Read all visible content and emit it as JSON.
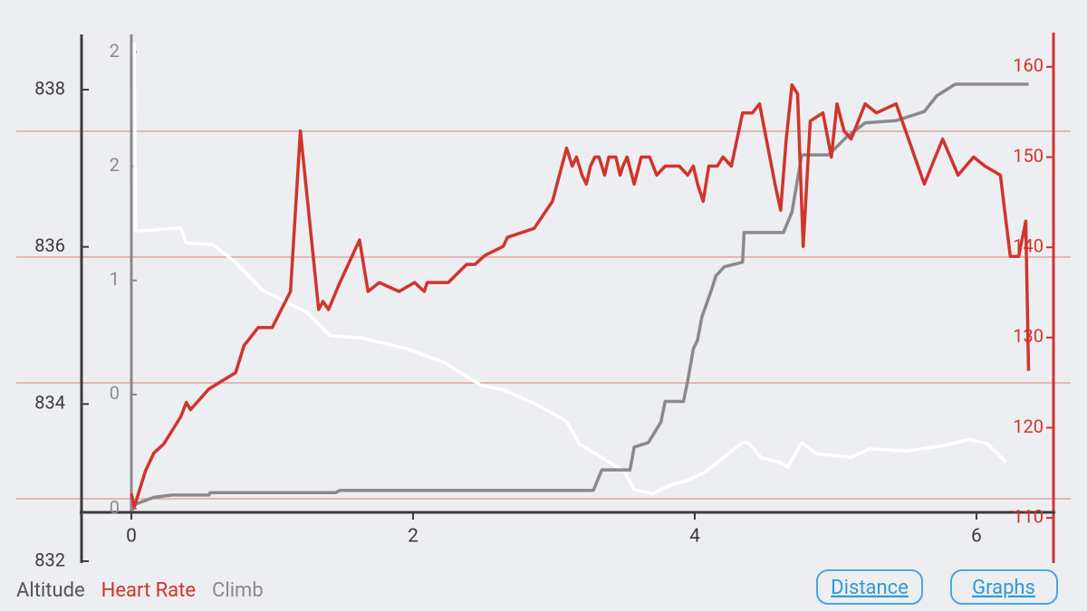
{
  "chart_data": {
    "type": "line",
    "xlim": [
      -0.354,
      6.547
    ],
    "xticks": [
      0,
      2,
      4,
      6
    ],
    "ylim": [
      832,
      838.68
    ],
    "yticks": [
      832,
      834,
      836,
      838
    ],
    "y2lim": [
      105.2,
      163.4
    ],
    "y2ticks": [
      110,
      120,
      130,
      140,
      150,
      160
    ],
    "y3lim": [
      -0.23,
      2.07
    ],
    "y3ticks": [
      0,
      {
        "value": 0.5,
        "label": "0"
      },
      1,
      {
        "value": 1.5,
        "label": "2"
      },
      2
    ],
    "series": [
      {
        "name": "Altitude",
        "color": "#ffffff",
        "axis": "y",
        "x": [
          0.02,
          0.03,
          0.35,
          0.39,
          0.58,
          0.74,
          0.93,
          1.25,
          1.41,
          1.64,
          1.96,
          2.22,
          2.48,
          2.64,
          2.86,
          3.09,
          3.18,
          3.34,
          3.5,
          3.57,
          3.7,
          3.83,
          3.95,
          4.08,
          4.24,
          4.34,
          4.38,
          4.47,
          4.6,
          4.66,
          4.76,
          4.86,
          5.11,
          5.24,
          5.5,
          5.76,
          5.95,
          6.08,
          6.21
        ],
        "values": [
          838.6,
          836.2,
          836.24,
          836.05,
          836.03,
          835.8,
          835.45,
          835.16,
          834.87,
          834.84,
          834.7,
          834.53,
          834.24,
          834.18,
          834.01,
          833.78,
          833.49,
          833.32,
          833.14,
          832.91,
          832.86,
          832.97,
          833.03,
          833.14,
          833.37,
          833.51,
          833.51,
          833.32,
          833.26,
          833.2,
          833.51,
          833.37,
          833.32,
          833.43,
          833.4,
          833.47,
          833.55,
          833.49,
          833.26
        ]
      },
      {
        "name": "Heart Rate",
        "color": "#d0342c",
        "axis": "y2",
        "x": [
          0.0,
          0.02,
          0.05,
          0.1,
          0.16,
          0.23,
          0.35,
          0.39,
          0.42,
          0.55,
          0.74,
          0.8,
          0.9,
          1.0,
          1.13,
          1.2,
          1.33,
          1.36,
          1.4,
          1.48,
          1.62,
          1.68,
          1.76,
          1.9,
          2.01,
          2.08,
          2.1,
          2.25,
          2.38,
          2.44,
          2.51,
          2.64,
          2.67,
          2.86,
          2.99,
          3.09,
          3.13,
          3.16,
          3.2,
          3.23,
          3.26,
          3.29,
          3.32,
          3.36,
          3.39,
          3.44,
          3.47,
          3.49,
          3.52,
          3.57,
          3.62,
          3.68,
          3.73,
          3.79,
          3.89,
          3.95,
          3.99,
          4.02,
          4.06,
          4.1,
          4.16,
          4.2,
          4.26,
          4.34,
          4.41,
          4.46,
          4.57,
          4.61,
          4.65,
          4.69,
          4.73,
          4.77,
          4.82,
          4.91,
          4.97,
          5.01,
          5.06,
          5.11,
          5.21,
          5.29,
          5.43,
          5.63,
          5.76,
          5.87,
          5.98,
          6.06,
          6.17,
          6.24,
          6.3,
          6.35,
          6.37
        ],
        "values": [
          112.7,
          111.2,
          112.7,
          115.2,
          117.2,
          118.2,
          121.2,
          122.8,
          122.0,
          124.3,
          126.1,
          129.1,
          131.1,
          131.1,
          135.1,
          152.9,
          133.1,
          134.0,
          133.1,
          136.1,
          140.8,
          135.1,
          136.1,
          135.1,
          136.1,
          135.1,
          136.1,
          136.1,
          138.1,
          138.1,
          139.1,
          140.1,
          141.1,
          142.1,
          145.1,
          151.0,
          149.0,
          150.0,
          148.0,
          147.0,
          149.0,
          150.0,
          150.0,
          148.0,
          150.0,
          150.0,
          148.0,
          149.0,
          150.0,
          147.0,
          150.0,
          150.0,
          148.0,
          149.0,
          149.0,
          148.0,
          149.0,
          147.0,
          145.1,
          149.0,
          149.0,
          150.0,
          149.0,
          154.9,
          154.9,
          155.9,
          147.0,
          144.1,
          152.0,
          158.0,
          157.0,
          140.1,
          154.0,
          154.9,
          150.0,
          155.9,
          152.9,
          152.0,
          155.9,
          154.9,
          155.9,
          147.0,
          152.0,
          148.0,
          150.0,
          149.0,
          148.0,
          139.0,
          139.0,
          142.9,
          126.3
        ]
      },
      {
        "name": "Climb",
        "color": "#8a8a8a",
        "axis": "y3",
        "x": [
          0.0,
          0.03,
          0.16,
          0.29,
          0.55,
          0.56,
          1.45,
          1.48,
          3.28,
          3.34,
          3.54,
          3.57,
          3.67,
          3.76,
          3.79,
          3.92,
          3.95,
          3.99,
          4.02,
          4.05,
          4.12,
          4.15,
          4.21,
          4.34,
          4.35,
          4.63,
          4.69,
          4.76,
          4.95,
          5.08,
          5.21,
          5.43,
          5.63,
          5.72,
          5.85,
          5.98,
          6.37
        ],
        "values": [
          -0.01,
          0.02,
          0.05,
          0.06,
          0.06,
          0.07,
          0.07,
          0.08,
          0.08,
          0.17,
          0.17,
          0.27,
          0.29,
          0.38,
          0.47,
          0.47,
          0.56,
          0.7,
          0.74,
          0.84,
          0.96,
          1.02,
          1.06,
          1.08,
          1.21,
          1.21,
          1.3,
          1.55,
          1.55,
          1.63,
          1.69,
          1.7,
          1.74,
          1.81,
          1.86,
          1.86,
          1.86
        ]
      }
    ]
  },
  "buttons": [
    "Distance",
    "Graphs"
  ]
}
